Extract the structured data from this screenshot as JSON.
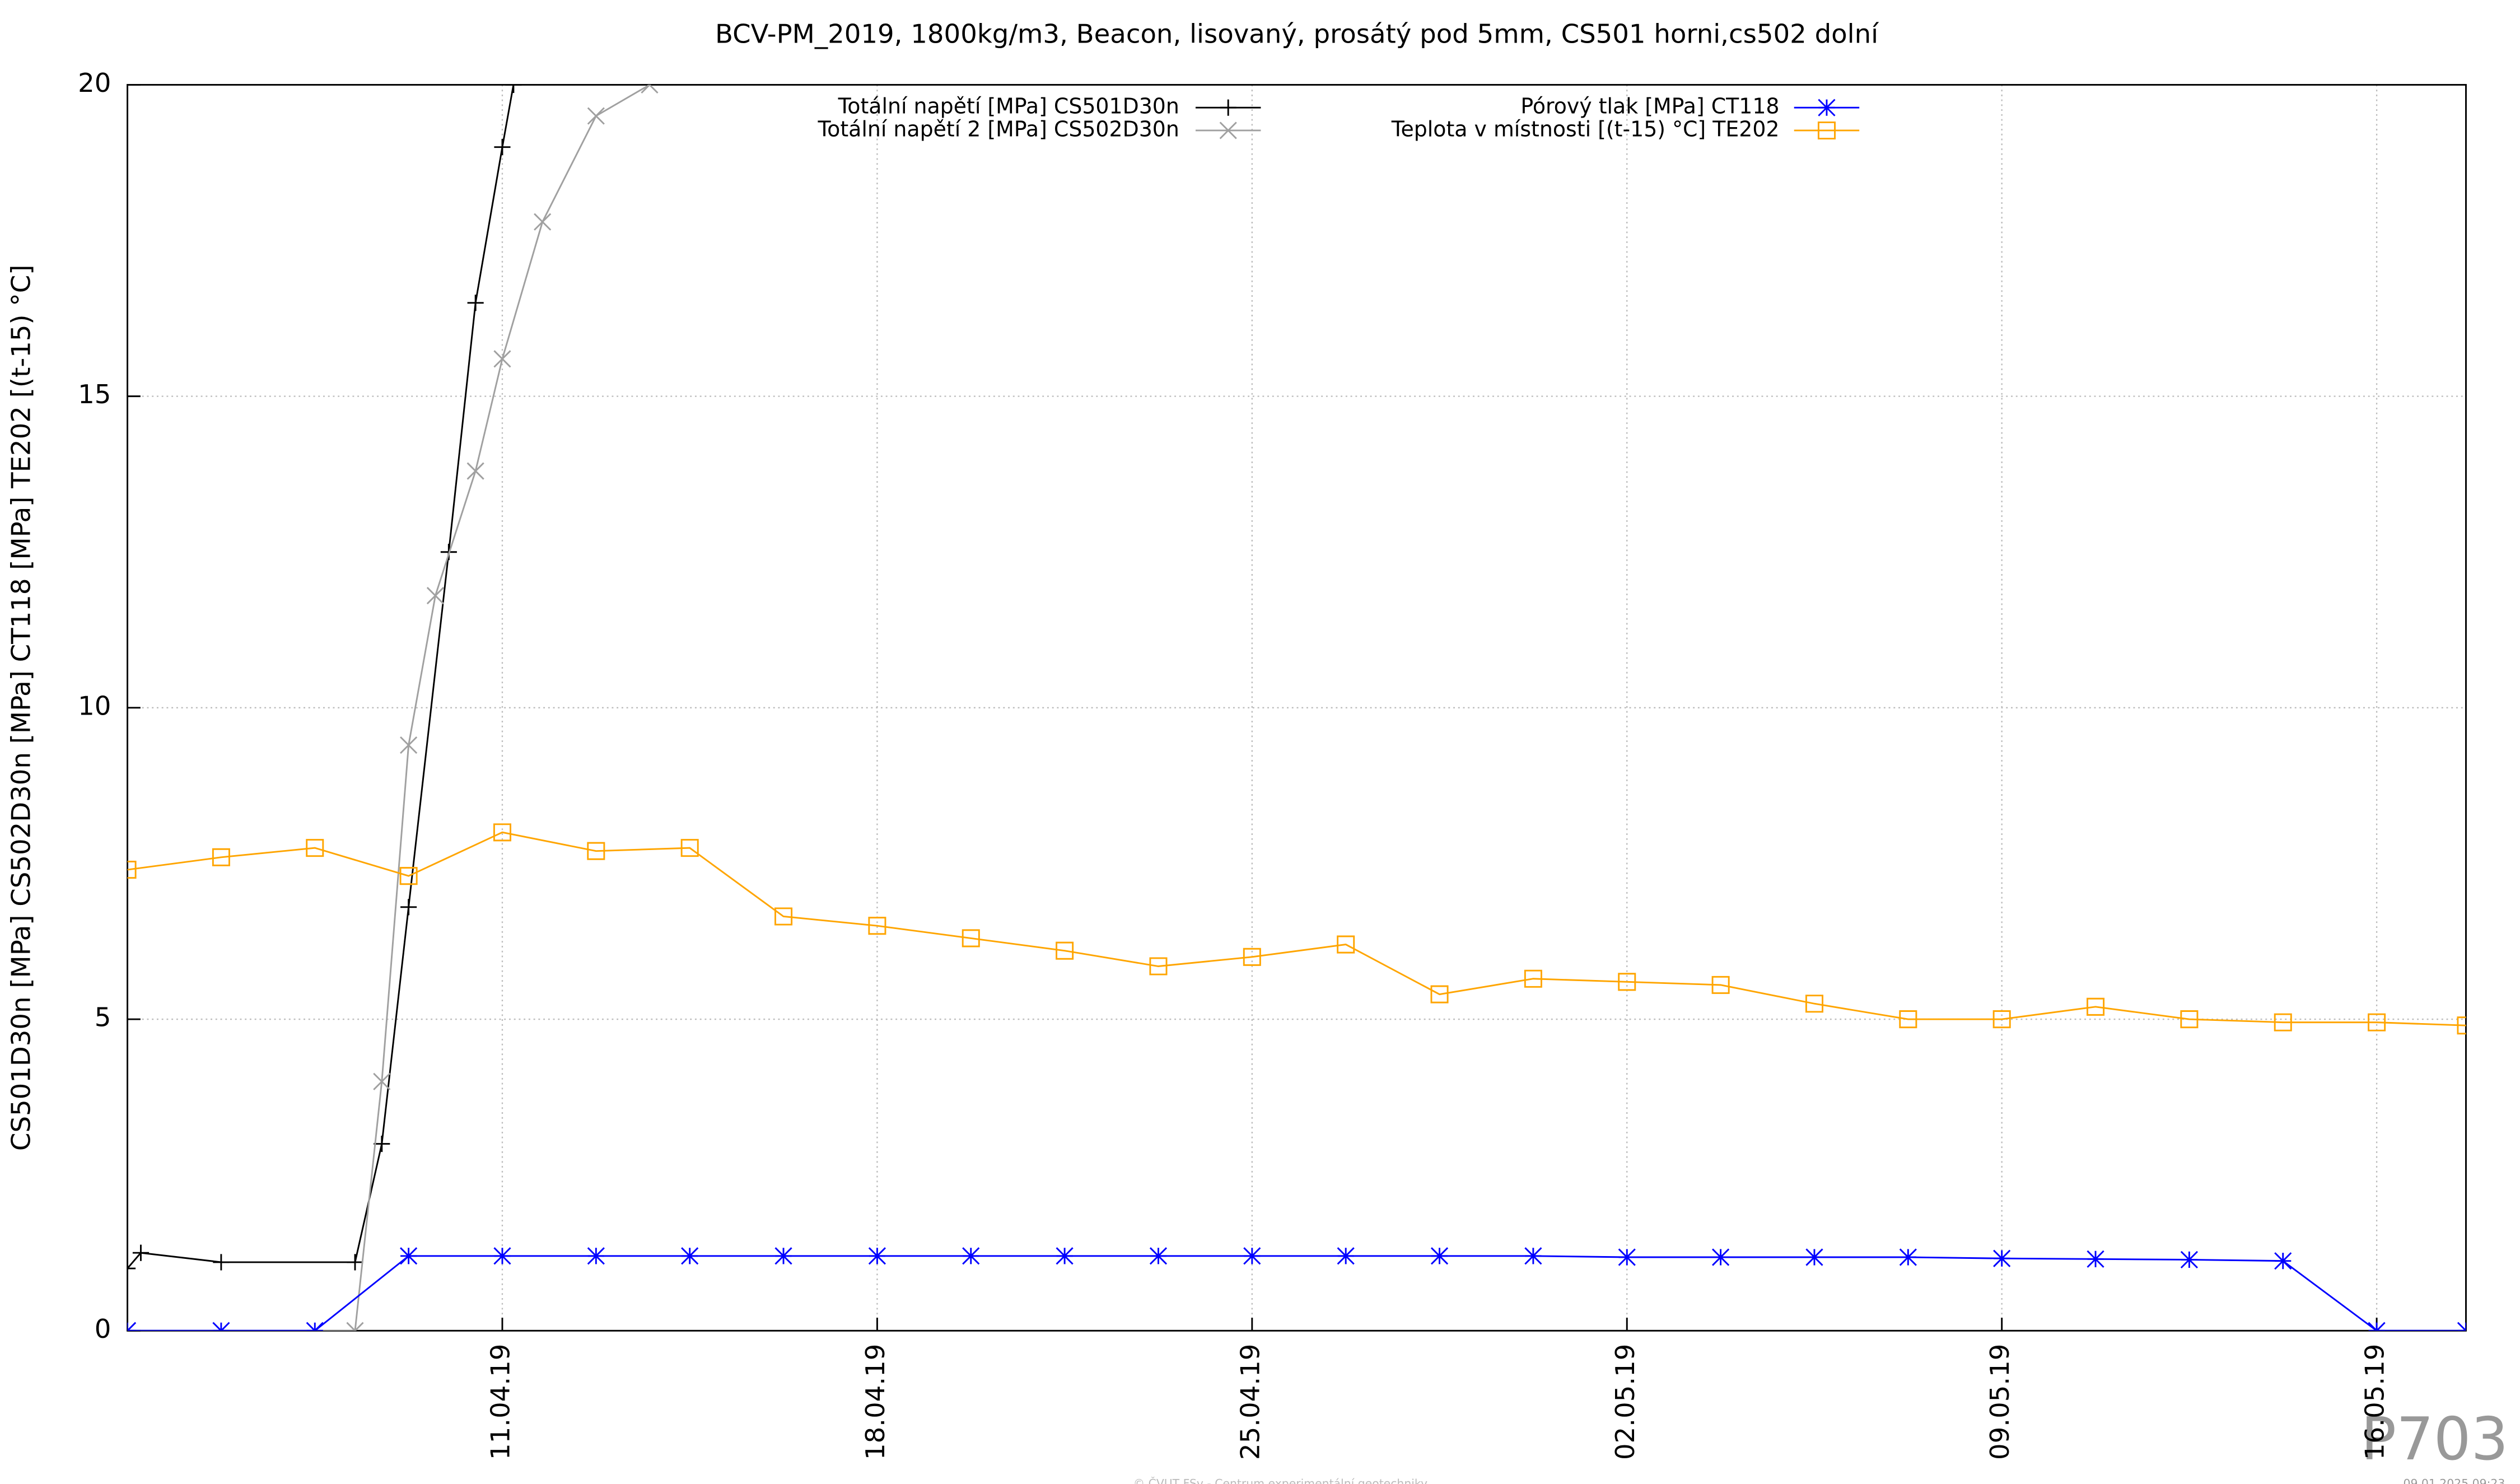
{
  "chart_data": {
    "type": "line",
    "title": "BCV-PM_2019, 1800kg/m3, Beacon, lisovaný, prosátý pod 5mm, CS501 horni,cs502 dolní",
    "ylabel": "CS501D30n [MPa] CS502D30n [MPa] CT118 [MPa] TE202 [(t-15) °C]",
    "x": [
      "2019-04-04T00:00",
      "2019-04-05T18:00",
      "2019-04-07T12:00",
      "2019-04-09T06:00",
      "2019-04-11T00:00",
      "2019-04-12T18:00",
      "2019-04-14T12:00",
      "2019-04-16T06:00",
      "2019-04-18T00:00",
      "2019-04-19T18:00",
      "2019-04-21T12:00",
      "2019-04-23T06:00",
      "2019-04-25T00:00",
      "2019-04-26T18:00",
      "2019-04-28T12:00",
      "2019-04-30T06:00",
      "2019-05-02T00:00",
      "2019-05-03T18:00",
      "2019-05-05T12:00",
      "2019-05-07T06:00",
      "2019-05-09T00:00",
      "2019-05-10T18:00",
      "2019-05-12T12:00",
      "2019-05-14T06:00",
      "2019-05-16T00:00",
      "2019-05-17T16:00"
    ],
    "series": [
      {
        "name": "Totální napětí [MPa] CS501D30n",
        "color": "#000000",
        "marker": "plus",
        "x": [
          "2019-04-04T00:00",
          "2019-04-04T06:00",
          "2019-04-05T18:00",
          "2019-04-08T06:00",
          "2019-04-08T18:00",
          "2019-04-09T06:00",
          "2019-04-10T00:00",
          "2019-04-10T12:00",
          "2019-04-11T00:00",
          "2019-04-11T05:00"
        ],
        "values": [
          1.0,
          1.25,
          1.1,
          1.1,
          3,
          6.8,
          12.5,
          16.5,
          19.0,
          20
        ]
      },
      {
        "name": "Totální napětí 2 [MPa] CS502D30n",
        "color": "#a0a0a0",
        "marker": "cross",
        "x": [
          "2019-04-04T00:00",
          "2019-04-08T06:00",
          "2019-04-08T18:00",
          "2019-04-09T06:00",
          "2019-04-09T18:00",
          "2019-04-10T12:00",
          "2019-04-11T00:00",
          "2019-04-11T18:00",
          "2019-04-12T18:00",
          "2019-04-13T18:00"
        ],
        "values": [
          0,
          0,
          4,
          9.4,
          11.8,
          13.8,
          15.6,
          17.8,
          19.5,
          20
        ]
      },
      {
        "name": "Pórový tlak [MPa] CT118",
        "color": "#0000ff",
        "marker": "star",
        "values": [
          0,
          0,
          0,
          1.2,
          1.2,
          1.2,
          1.2,
          1.2,
          1.2,
          1.2,
          1.2,
          1.2,
          1.2,
          1.2,
          1.2,
          1.2,
          1.18,
          1.18,
          1.18,
          1.18,
          1.16,
          1.15,
          1.14,
          1.12,
          0,
          0
        ]
      },
      {
        "name": "Teplota v místnosti [(t-15) °C] TE202",
        "color": "#ffa500",
        "marker": "square",
        "values": [
          7.4,
          7.6,
          7.75,
          7.3,
          8.0,
          7.7,
          7.75,
          6.65,
          6.5,
          6.3,
          6.1,
          5.85,
          6.0,
          6.2,
          5.4,
          5.65,
          5.6,
          5.55,
          5.25,
          5.0,
          5.0,
          5.2,
          5.0,
          4.95,
          4.95,
          4.9
        ]
      }
    ],
    "xlim": [
      "2019-04-04T00:00",
      "2019-05-17T16:00"
    ],
    "xticks": [
      {
        "value": "2019-04-11T00:00",
        "label": "11.04.19"
      },
      {
        "value": "2019-04-18T00:00",
        "label": "18.04.19"
      },
      {
        "value": "2019-04-25T00:00",
        "label": "25.04.19"
      },
      {
        "value": "2019-05-02T00:00",
        "label": "02.05.19"
      },
      {
        "value": "2019-05-09T00:00",
        "label": "09.05.19"
      },
      {
        "value": "2019-05-16T00:00",
        "label": "16.05.19"
      }
    ],
    "ylim": [
      0,
      20
    ],
    "yticks": [
      0,
      5,
      10,
      15,
      20
    ],
    "grid": true,
    "legend": "top",
    "watermark": "P703",
    "footer": "© ČVUT FSv - Centrum experimentální geotechniky",
    "timestamp": "09.01.2025 09:23"
  }
}
